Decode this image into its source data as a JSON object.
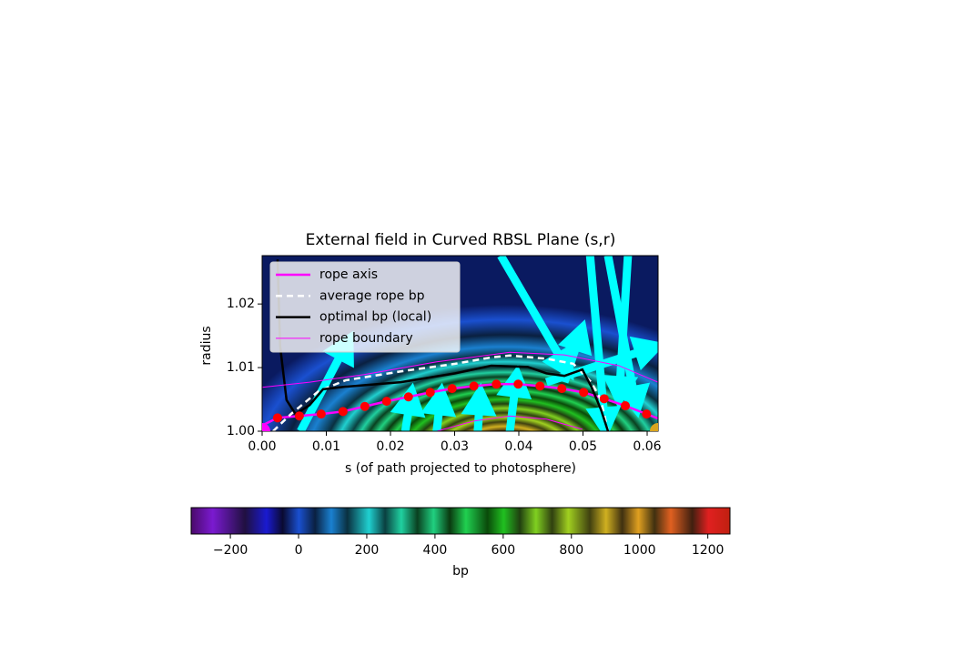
{
  "chart_data": {
    "type": "line",
    "title": "External field in Curved RBSL Plane (s,r)",
    "xlabel": "s (of path projected to photosphere)",
    "ylabel": "radius",
    "xlim": [
      0,
      0.0617
    ],
    "ylim": [
      1.0,
      1.0276
    ],
    "xticks": [
      {
        "value": 0,
        "label": "0.00"
      },
      {
        "value": 0.01,
        "label": "0.01"
      },
      {
        "value": 0.02,
        "label": "0.02"
      },
      {
        "value": 0.03,
        "label": "0.03"
      },
      {
        "value": 0.04,
        "label": "0.04"
      },
      {
        "value": 0.05,
        "label": "0.05"
      },
      {
        "value": 0.06,
        "label": "0.06"
      }
    ],
    "yticks": [
      {
        "value": 1.0,
        "label": "1.00"
      },
      {
        "value": 1.01,
        "label": "1.01"
      },
      {
        "value": 1.02,
        "label": "1.02"
      }
    ],
    "legend": "upper left",
    "series": [
      {
        "name": "rope axis",
        "color": "#ff00ff",
        "width": 2.5,
        "dash": "none",
        "x": [
          0,
          0.0024,
          0.0058,
          0.0092,
          0.0126,
          0.016,
          0.0194,
          0.0228,
          0.0262,
          0.0296,
          0.033,
          0.0365,
          0.0399,
          0.0433,
          0.0467,
          0.0501,
          0.0533,
          0.0566,
          0.0599,
          0.0617
        ],
        "values": [
          1.0009,
          1.0021,
          1.0024,
          1.0027,
          1.0031,
          1.0039,
          1.0047,
          1.0054,
          1.0061,
          1.0067,
          1.0071,
          1.0074,
          1.0074,
          1.0071,
          1.0067,
          1.0061,
          1.0051,
          1.004,
          1.0027,
          1.002
        ]
      },
      {
        "name": "average rope bp",
        "color": "#ffffff",
        "width": 2.5,
        "dash": "7 5",
        "x": [
          0.0017,
          0.0045,
          0.0088,
          0.013,
          0.0216,
          0.0301,
          0.0357,
          0.0386,
          0.0443,
          0.0485,
          0.0513,
          0.0528,
          0.0539
        ],
        "values": [
          1.0,
          1.0027,
          1.0063,
          1.008,
          1.0094,
          1.0106,
          1.0116,
          1.0119,
          1.0114,
          1.0106,
          1.0077,
          1.0049,
          1.0
        ]
      },
      {
        "name": "optimal bp (local)",
        "color": "#000000",
        "width": 2.5,
        "dash": "none",
        "x": [
          0.0024,
          0.0028,
          0.0038,
          0.0052,
          0.0074,
          0.0095,
          0.013,
          0.0216,
          0.0301,
          0.0357,
          0.0414,
          0.0443,
          0.0471,
          0.0499,
          0.0513,
          0.0528,
          0.0539
        ],
        "values": [
          1.027,
          1.0134,
          1.0049,
          1.0027,
          1.0041,
          1.0066,
          1.007,
          1.0077,
          1.0091,
          1.0103,
          1.0101,
          1.0091,
          1.0087,
          1.0097,
          1.007,
          1.0034,
          1.0
        ]
      },
      {
        "name": "rope boundary",
        "color": "#ff00ff",
        "width": 1,
        "dash": "none",
        "x": [
          0,
          0.0074,
          0.0159,
          0.0272,
          0.0386,
          0.0471,
          0.0556,
          0.0617,
          null,
          0.0272,
          0.033,
          0.0386,
          0.0443,
          0.0499
        ],
        "values": [
          1.0069,
          1.0077,
          1.0089,
          1.0109,
          1.0124,
          1.012,
          1.0103,
          1.0077,
          null,
          1.0,
          1.0016,
          1.0024,
          1.0019,
          1.0003
        ]
      }
    ],
    "points": {
      "color": "#ff0000",
      "x": [
        0.0024,
        0.0058,
        0.0092,
        0.0126,
        0.016,
        0.0194,
        0.0228,
        0.0262,
        0.0296,
        0.033,
        0.0365,
        0.0399,
        0.0433,
        0.0467,
        0.0501,
        0.0533,
        0.0566,
        0.0599
      ],
      "values": [
        1.0021,
        1.0024,
        1.0027,
        1.0031,
        1.0039,
        1.0047,
        1.0054,
        1.0061,
        1.0067,
        1.0071,
        1.0074,
        1.0074,
        1.0071,
        1.0067,
        1.0061,
        1.0051,
        1.004,
        1.0027
      ]
    },
    "markers": [
      {
        "x": 0,
        "y": 1.0,
        "color": "#ff00ff"
      },
      {
        "x": 0.0617,
        "y": 1.0,
        "color": "#daa520"
      }
    ],
    "arrows": {
      "color": "#00ffff",
      "items": [
        {
          "x0": 0.006,
          "y0": 1.0,
          "x1": 0.0136,
          "y1": 1.0146
        },
        {
          "x0": 0.0372,
          "y0": 1.0276,
          "x1": 0.0479,
          "y1": 1.0091
        },
        {
          "x0": 0.0471,
          "y0": 1.0077,
          "x1": 0.0499,
          "y1": 1.0163
        },
        {
          "x0": 0.0443,
          "y0": 1.0077,
          "x1": 0.0617,
          "y1": 1.0134
        },
        {
          "x0": 0.0511,
          "y0": 1.0276,
          "x1": 0.0535,
          "y1": 1.0
        },
        {
          "x0": 0.0539,
          "y0": 1.0276,
          "x1": 0.0584,
          "y1": 1.0034
        },
        {
          "x0": 0.057,
          "y0": 1.0276,
          "x1": 0.0556,
          "y1": 1.0049
        },
        {
          "x0": 0.0223,
          "y0": 1.0,
          "x1": 0.0233,
          "y1": 1.0063
        },
        {
          "x0": 0.0272,
          "y0": 1.0,
          "x1": 0.0279,
          "y1": 1.0063
        },
        {
          "x0": 0.0336,
          "y0": 1.0,
          "x1": 0.034,
          "y1": 1.0063
        },
        {
          "x0": 0.0386,
          "y0": 1.0,
          "x1": 0.0397,
          "y1": 1.0091
        }
      ]
    },
    "colorbar": {
      "label": "bp",
      "lim": [
        -315,
        1265
      ],
      "ticks": [
        {
          "value": -200,
          "label": "−200"
        },
        0,
        200,
        400,
        600,
        800,
        1000,
        1200
      ]
    }
  }
}
